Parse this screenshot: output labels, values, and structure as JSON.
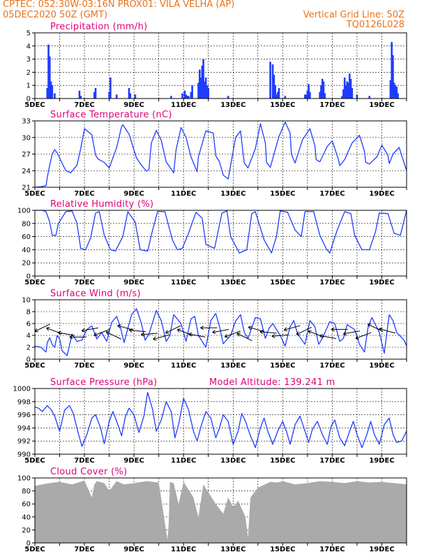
{
  "header": {
    "line1_left": "CPTEC:   052:30W-03:16N   PROX01: VILA VELHA (AP)",
    "line2_left": "05DEC2020 50Z (GMT)",
    "line2_right": "Vertical Grid Line: 50Z",
    "line3_right": "TQ0126L028"
  },
  "colors": {
    "header_text": "#e8731a",
    "panel_title": "#e0007a",
    "series_line": "#1e3cff",
    "precip_bar": "#1e3cff",
    "cloud_fill": "#aaaaaa",
    "arrows": "#000000",
    "axis": "#000000"
  },
  "chart_data": [
    {
      "type": "bar",
      "title": "Precipitation (mm/h)",
      "x_ticks": [
        "5DEC",
        "7DEC",
        "9DEC",
        "11DEC",
        "13DEC",
        "15DEC",
        "17DEC",
        "19DEC"
      ],
      "xlim": [
        0,
        15
      ],
      "ylim": [
        0,
        5
      ],
      "y_ticks": [
        "0",
        "1",
        "2",
        "3",
        "4",
        "5"
      ],
      "grid": "dashed vertical daily + dashed horizontal",
      "x": [
        0.5,
        0.55,
        0.6,
        0.65,
        0.7,
        0.8,
        1.8,
        1.85,
        2.4,
        2.45,
        3.0,
        3.05,
        3.3,
        3.8,
        3.85,
        4.05,
        5.5,
        5.95,
        6.05,
        6.1,
        6.15,
        6.2,
        6.3,
        6.35,
        6.6,
        6.65,
        6.7,
        6.75,
        6.8,
        6.85,
        6.9,
        6.95,
        7.0,
        7.8,
        9.5,
        9.6,
        9.65,
        9.7,
        9.75,
        9.8,
        9.85,
        10.1,
        10.9,
        10.95,
        11.0,
        11.05,
        11.1,
        11.5,
        11.55,
        11.6,
        11.65,
        11.7,
        12.4,
        12.45,
        12.5,
        12.55,
        12.6,
        12.65,
        12.7,
        12.75,
        12.8,
        13.0,
        13.5,
        14.35,
        14.4,
        14.45,
        14.5,
        14.55,
        14.6,
        14.65
      ],
      "values": [
        0.8,
        4.1,
        3.2,
        1.3,
        1.0,
        0.4,
        0.6,
        0.2,
        0.5,
        0.8,
        0.5,
        1.6,
        0.3,
        0.8,
        0.4,
        0.3,
        0.2,
        0.4,
        0.6,
        0.3,
        0.2,
        0.2,
        0.5,
        1.0,
        1.2,
        2.2,
        1.6,
        2.5,
        3.0,
        1.3,
        1.6,
        1.0,
        0.8,
        0.2,
        2.8,
        2.6,
        1.8,
        1.0,
        0.3,
        0.5,
        0.8,
        0.2,
        0.3,
        0.3,
        0.6,
        1.1,
        0.5,
        0.5,
        1.0,
        1.5,
        1.3,
        0.4,
        0.2,
        0.7,
        1.6,
        1.0,
        1.3,
        1.2,
        1.9,
        1.5,
        0.8,
        0.3,
        0.2,
        1.4,
        4.3,
        3.3,
        1.2,
        1.0,
        0.9,
        0.4
      ]
    },
    {
      "type": "line",
      "title": "Surface Temperature (nC)",
      "x_ticks": [
        "5DEC",
        "7DEC",
        "9DEC",
        "11DEC",
        "13DEC",
        "15DEC",
        "17DEC",
        "19DEC"
      ],
      "xlim": [
        0,
        15
      ],
      "ylim": [
        21,
        33
      ],
      "y_ticks": [
        "21",
        "24",
        "27",
        "30",
        "33"
      ],
      "x": [
        0,
        0.25,
        0.45,
        0.5,
        0.6,
        0.7,
        0.8,
        0.9,
        1.05,
        1.25,
        1.45,
        1.7,
        1.85,
        2.0,
        2.3,
        2.45,
        2.55,
        2.8,
        3.0,
        3.3,
        3.5,
        3.55,
        3.8,
        4.1,
        4.3,
        4.5,
        4.6,
        4.7,
        4.9,
        5.1,
        5.3,
        5.5,
        5.6,
        5.7,
        5.9,
        6.1,
        6.3,
        6.5,
        6.55,
        6.6,
        6.9,
        7.2,
        7.3,
        7.45,
        7.6,
        7.8,
        8.1,
        8.3,
        8.4,
        8.45,
        8.6,
        8.9,
        9.1,
        9.3,
        9.35,
        9.5,
        9.85,
        10.1,
        10.3,
        10.35,
        10.5,
        10.8,
        11.1,
        11.3,
        11.35,
        11.5,
        11.8,
        12.0,
        12.25,
        12.3,
        12.5,
        12.8,
        13.1,
        13.3,
        13.35,
        13.5,
        13.8,
        14.0,
        14.25,
        14.3,
        14.45,
        14.7,
        15.0
      ],
      "values": [
        21.0,
        21.1,
        21.3,
        22.8,
        25.0,
        27.0,
        27.8,
        27.2,
        25.8,
        24.0,
        23.6,
        25.0,
        28.0,
        31.6,
        30.5,
        26.8,
        26.1,
        25.5,
        24.5,
        28.2,
        32.0,
        32.3,
        30.6,
        26.3,
        25.0,
        23.9,
        24.2,
        29.0,
        31.3,
        29.5,
        25.6,
        24.3,
        23.6,
        27.8,
        31.8,
        30.0,
        26.5,
        24.3,
        23.8,
        26.5,
        31.2,
        30.8,
        26.7,
        25.6,
        23.2,
        22.5,
        30.0,
        31.2,
        27.2,
        25.4,
        24.5,
        28.0,
        32.5,
        29.0,
        25.5,
        24.6,
        30.2,
        32.8,
        30.8,
        27.0,
        25.4,
        29.6,
        31.6,
        28.5,
        26.0,
        25.6,
        28.4,
        29.4,
        26.0,
        24.9,
        26.0,
        29.0,
        30.4,
        27.5,
        25.5,
        25.2,
        26.5,
        28.6,
        26.8,
        25.3,
        27.0,
        28.2,
        24.0
      ]
    },
    {
      "type": "line",
      "title": "Relative Humidity (%)",
      "x_ticks": [
        "5DEC",
        "7DEC",
        "9DEC",
        "11DEC",
        "13DEC",
        "15DEC",
        "17DEC",
        "19DEC"
      ],
      "xlim": [
        0,
        15
      ],
      "ylim": [
        0,
        100
      ],
      "y_ticks": [
        "0",
        "20",
        "40",
        "60",
        "80",
        "100"
      ],
      "x": [
        0,
        0.3,
        0.45,
        0.6,
        0.7,
        0.85,
        0.95,
        1.25,
        1.5,
        1.7,
        1.85,
        2.05,
        2.25,
        2.45,
        2.6,
        2.8,
        3.05,
        3.25,
        3.55,
        3.75,
        4.05,
        4.25,
        4.55,
        4.75,
        4.95,
        5.25,
        5.55,
        5.75,
        5.95,
        6.2,
        6.5,
        6.75,
        6.9,
        7.25,
        7.55,
        7.75,
        7.9,
        8.25,
        8.55,
        8.75,
        8.9,
        9.25,
        9.55,
        9.75,
        9.9,
        10.2,
        10.5,
        10.75,
        10.9,
        11.25,
        11.5,
        11.75,
        11.9,
        12.2,
        12.5,
        12.75,
        12.9,
        13.2,
        13.5,
        13.75,
        13.9,
        14.25,
        14.5,
        14.75,
        15.0
      ],
      "values": [
        100,
        100,
        98,
        82,
        62,
        62,
        80,
        98,
        99,
        80,
        42,
        40,
        58,
        96,
        98,
        62,
        40,
        38,
        60,
        98,
        82,
        40,
        38,
        70,
        98,
        98,
        55,
        40,
        42,
        65,
        97,
        88,
        48,
        42,
        96,
        99,
        60,
        35,
        40,
        95,
        98,
        55,
        35,
        60,
        99,
        97,
        70,
        60,
        98,
        98,
        62,
        42,
        35,
        70,
        98,
        95,
        62,
        40,
        40,
        68,
        96,
        95,
        65,
        62,
        100
      ]
    },
    {
      "type": "line",
      "title": "Surface Wind (m/s)",
      "x_ticks": [
        "5DEC",
        "7DEC",
        "9DEC",
        "11DEC",
        "13DEC",
        "15DEC",
        "17DEC",
        "19DEC"
      ],
      "xlim": [
        0,
        15
      ],
      "ylim": [
        0,
        10
      ],
      "y_ticks": [
        "0",
        "2",
        "4",
        "6",
        "8",
        "10"
      ],
      "x": [
        0,
        0.25,
        0.45,
        0.5,
        0.6,
        0.7,
        0.8,
        0.9,
        1.0,
        1.1,
        1.3,
        1.5,
        1.7,
        1.9,
        2.1,
        2.3,
        2.5,
        2.7,
        2.9,
        3.1,
        3.3,
        3.45,
        3.6,
        3.9,
        4.1,
        4.3,
        4.45,
        4.6,
        4.9,
        5.1,
        5.3,
        5.45,
        5.6,
        5.9,
        6.1,
        6.3,
        6.45,
        6.6,
        6.9,
        7.1,
        7.3,
        7.45,
        7.6,
        7.9,
        8.1,
        8.3,
        8.45,
        8.6,
        8.9,
        9.1,
        9.3,
        9.45,
        9.6,
        9.9,
        10.1,
        10.3,
        10.45,
        10.6,
        10.9,
        11.1,
        11.3,
        11.45,
        11.6,
        11.9,
        12.1,
        12.3,
        12.45,
        12.6,
        12.9,
        13.1,
        13.3,
        13.45,
        13.6,
        13.9,
        14.1,
        14.3,
        14.45,
        14.6,
        14.9,
        15.0
      ],
      "values": [
        2.2,
        2.0,
        1.2,
        2.8,
        3.6,
        2.5,
        2.0,
        4.0,
        3.4,
        1.4,
        0.6,
        4.2,
        3.0,
        3.2,
        5.0,
        5.6,
        3.4,
        4.5,
        3.0,
        6.2,
        7.2,
        5.4,
        2.8,
        7.5,
        8.5,
        6.0,
        3.2,
        4.2,
        8.2,
        6.5,
        3.0,
        4.0,
        7.5,
        6.0,
        3.0,
        6.8,
        7.2,
        4.0,
        2.0,
        6.5,
        7.7,
        5.5,
        2.6,
        4.0,
        6.4,
        7.5,
        4.5,
        3.5,
        7.0,
        6.8,
        3.5,
        5.2,
        6.0,
        4.0,
        2.2,
        5.5,
        6.5,
        4.2,
        2.5,
        6.5,
        5.5,
        2.5,
        3.5,
        6.3,
        6.0,
        3.0,
        3.5,
        5.8,
        5.0,
        2.5,
        1.2,
        5.5,
        7.0,
        4.5,
        1.0,
        7.5,
        6.5,
        4.5,
        3.2,
        2.2
      ]
    },
    {
      "type": "line",
      "title": "Surface Pressure (hPa)",
      "annotation": "Model Altitude: 139.241 m",
      "x_ticks": [
        "5DEC",
        "7DEC",
        "9DEC",
        "11DEC",
        "13DEC",
        "15DEC",
        "17DEC",
        "19DEC"
      ],
      "xlim": [
        0,
        15
      ],
      "ylim": [
        990,
        1000
      ],
      "y_ticks": [
        "990",
        "992",
        "994",
        "996",
        "998",
        "1000"
      ],
      "x": [
        0,
        0.15,
        0.3,
        0.5,
        0.65,
        0.8,
        1.0,
        1.2,
        1.4,
        1.55,
        1.75,
        1.9,
        2.1,
        2.3,
        2.45,
        2.65,
        2.8,
        3.0,
        3.15,
        3.3,
        3.5,
        3.65,
        3.8,
        4.0,
        4.2,
        4.4,
        4.55,
        4.75,
        4.9,
        5.1,
        5.3,
        5.5,
        5.65,
        5.8,
        6.0,
        6.2,
        6.4,
        6.55,
        6.7,
        6.9,
        7.1,
        7.3,
        7.45,
        7.6,
        7.8,
        8.0,
        8.2,
        8.35,
        8.5,
        8.7,
        8.9,
        9.1,
        9.25,
        9.4,
        9.6,
        9.8,
        10.0,
        10.15,
        10.3,
        10.5,
        10.7,
        10.9,
        11.05,
        11.2,
        11.4,
        11.6,
        11.8,
        11.95,
        12.1,
        12.3,
        12.5,
        12.7,
        12.85,
        13.0,
        13.2,
        13.4,
        13.55,
        13.7,
        13.9,
        14.1,
        14.3,
        14.45,
        14.6,
        14.8,
        15.0
      ],
      "values": [
        997.2,
        997.0,
        996.5,
        997.4,
        996.8,
        995.8,
        993.5,
        996.7,
        997.4,
        996.2,
        993.2,
        991.2,
        993.0,
        995.5,
        996.0,
        994.0,
        991.6,
        995.0,
        996.5,
        995.0,
        992.8,
        995.7,
        997.0,
        996.0,
        993.3,
        995.8,
        999.4,
        996.8,
        993.5,
        995.2,
        998.0,
        996.5,
        992.5,
        994.5,
        998.5,
        996.8,
        993.5,
        992.0,
        994.2,
        996.5,
        995.5,
        992.5,
        994.0,
        996.0,
        995.0,
        991.5,
        993.5,
        996.2,
        995.0,
        992.8,
        991.0,
        994.0,
        995.5,
        993.5,
        991.5,
        993.5,
        995.0,
        993.5,
        991.5,
        994.5,
        995.8,
        993.5,
        991.8,
        993.8,
        995.0,
        993.0,
        991.5,
        994.2,
        995.2,
        992.5,
        991.3,
        993.5,
        995.0,
        993.0,
        991.0,
        993.0,
        995.0,
        993.0,
        991.5,
        994.5,
        995.5,
        993.0,
        991.8,
        992.0,
        993.5
      ]
    },
    {
      "type": "area",
      "title": "Cloud Cover (%)",
      "x_ticks": [
        "5DEC",
        "7DEC",
        "9DEC",
        "11DEC",
        "13DEC",
        "15DEC",
        "17DEC",
        "19DEC"
      ],
      "xlim": [
        0,
        15
      ],
      "ylim": [
        0,
        100
      ],
      "y_ticks": [
        "0",
        "20",
        "40",
        "60",
        "80",
        "100"
      ],
      "x": [
        0,
        0.3,
        0.6,
        1.0,
        1.5,
        2.0,
        2.3,
        2.4,
        2.5,
        2.8,
        3.0,
        3.3,
        3.6,
        4.0,
        4.5,
        5.0,
        5.35,
        5.4,
        5.45,
        5.6,
        5.8,
        6.0,
        6.4,
        6.6,
        6.8,
        7.0,
        7.3,
        7.6,
        7.8,
        8.0,
        8.2,
        8.5,
        8.6,
        8.7,
        9.0,
        9.5,
        9.8,
        10.0,
        10.5,
        11.0,
        11.5,
        12.0,
        12.5,
        13.0,
        13.5,
        14.0,
        14.5,
        15.0
      ],
      "values": [
        88,
        90,
        92,
        94,
        90,
        96,
        70,
        90,
        95,
        92,
        80,
        95,
        90,
        92,
        95,
        93,
        5,
        30,
        94,
        92,
        60,
        94,
        70,
        40,
        90,
        78,
        60,
        45,
        70,
        55,
        65,
        40,
        8,
        70,
        85,
        94,
        93,
        95,
        90,
        92,
        95,
        94,
        92,
        95,
        93,
        94,
        92,
        90
      ]
    }
  ]
}
